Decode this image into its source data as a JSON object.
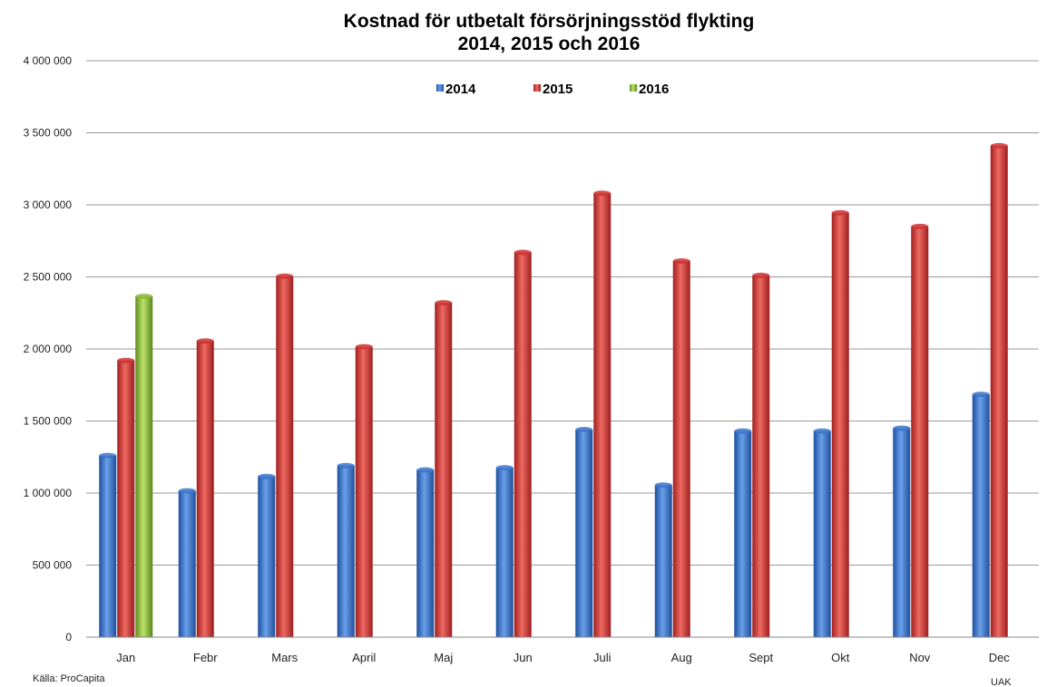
{
  "chart_data": {
    "type": "bar",
    "title_line1": "Kostnad för utbetalt försörjningsstöd flykting",
    "title_line2": "2014, 2015 och 2016",
    "categories": [
      "Jan",
      "Febr",
      "Mars",
      "April",
      "Maj",
      "Jun",
      "Juli",
      "Aug",
      "Sept",
      "Okt",
      "Nov",
      "Dec"
    ],
    "series": [
      {
        "name": "2014",
        "color": "#3b74c9",
        "values": [
          1260000,
          1015000,
          1115000,
          1190000,
          1160000,
          1175000,
          1440000,
          1055000,
          1430000,
          1430000,
          1450000,
          1685000
        ]
      },
      {
        "name": "2015",
        "color": "#cc3333",
        "values": [
          1920000,
          2055000,
          2505000,
          2015000,
          2320000,
          2670000,
          3080000,
          2610000,
          2510000,
          2945000,
          2850000,
          3410000
        ]
      },
      {
        "name": "2016",
        "color": "#8cb83a",
        "values": [
          2365000,
          null,
          null,
          null,
          null,
          null,
          null,
          null,
          null,
          null,
          null,
          null
        ]
      }
    ],
    "ylim": [
      0,
      4000000
    ],
    "yticks": [
      0,
      500000,
      1000000,
      1500000,
      2000000,
      2500000,
      3000000,
      3500000,
      4000000
    ],
    "ytick_labels": [
      "0",
      "500 000",
      "1 000 000",
      "1 500 000",
      "2 000 000",
      "2 500 000",
      "3 000 000",
      "3 500 000",
      "4 000 000"
    ],
    "grid": true,
    "legend_position": "top-center"
  },
  "footer": {
    "source": "Källa: ProCapita",
    "author": "UAK"
  }
}
